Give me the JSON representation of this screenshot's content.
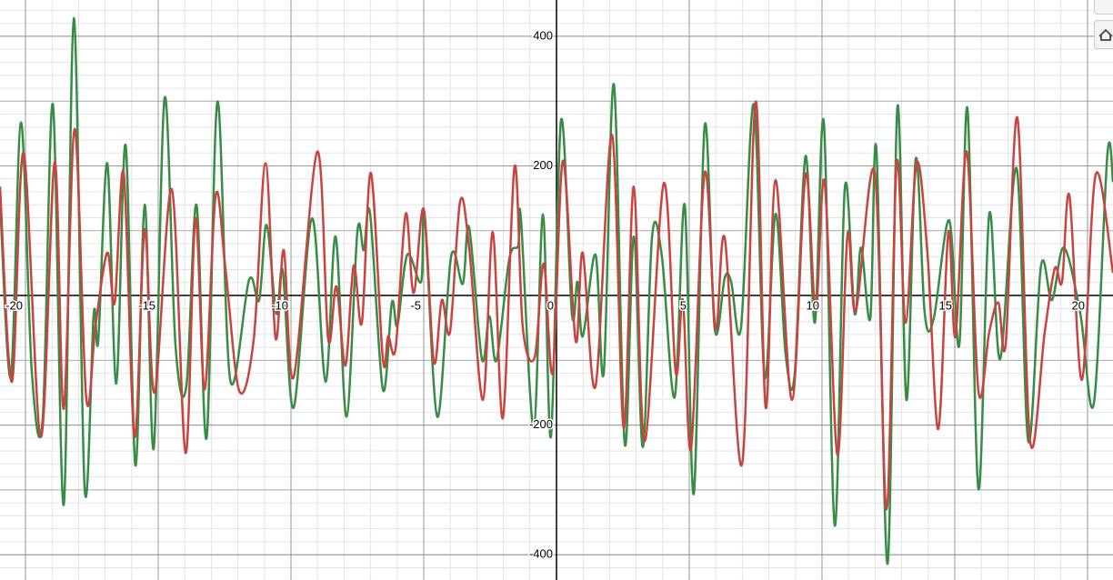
{
  "chart_data": {
    "type": "line",
    "xlim": [
      -20.96,
      20.96
    ],
    "ylim": [
      -439,
      456
    ],
    "xticks": [
      -20,
      -15,
      -10,
      -5,
      0,
      5,
      10,
      15,
      20
    ],
    "yticks": [
      -400,
      -200,
      200,
      400
    ],
    "grid": true,
    "minor_grid": true,
    "series": [
      {
        "color": "#388c46",
        "x": [
          -20.96,
          -20.55,
          -20.17,
          -19.76,
          -19.35,
          -18.97,
          -18.56,
          -18.18,
          -17.77,
          -17.43,
          -17.26,
          -16.92,
          -16.58,
          -16.23,
          -15.86,
          -15.51,
          -15.17,
          -14.76,
          -14.35,
          -13.94,
          -13.56,
          -13.18,
          -12.77,
          -12.29,
          -11.58,
          -11.2,
          -10.92,
          -10.55,
          -10.31,
          -9.9,
          -9.21,
          -8.7,
          -8.32,
          -7.91,
          -7.5,
          -7.26,
          -7.02,
          -6.54,
          -6.2,
          -5.99,
          -5.62,
          -5.1,
          -4.97,
          -4.49,
          -3.97,
          -3.53,
          -3.29,
          -2.81,
          -2.53,
          -2.26,
          -1.78,
          -1.44,
          -1.34,
          -0.86,
          -0.51,
          -0.21,
          0.17,
          0.58,
          0.79,
          0.99,
          1.47,
          1.78,
          2.16,
          2.57,
          2.91,
          3.25,
          3.6,
          3.97,
          4.45,
          4.83,
          5.17,
          5.58,
          5.96,
          6.34,
          6.58,
          6.95,
          7.43,
          7.84,
          8.25,
          8.63,
          8.97,
          9.38,
          9.73,
          10.07,
          10.48,
          10.86,
          11.23,
          11.47,
          11.82,
          12.05,
          12.47,
          12.84,
          13.18,
          13.53,
          13.87,
          14.21,
          14.79,
          15.17,
          15.48,
          15.89,
          16.3,
          16.71,
          17.33,
          17.77,
          18.25,
          18.66,
          19.11,
          19.73,
          20.24,
          20.75,
          20.96
        ],
        "values": [
          147,
          -126,
          267,
          -119,
          -189,
          295,
          -323,
          428,
          -299,
          -28,
          -70,
          204,
          -136,
          232,
          -262,
          140,
          -236,
          305,
          -77,
          -140,
          140,
          -220,
          299,
          -130,
          24,
          -7,
          109,
          -28,
          38,
          -173,
          119,
          -133,
          91,
          -187,
          98,
          70,
          126,
          -145,
          -11,
          -46,
          63,
          21,
          126,
          -187,
          60,
          18,
          105,
          -98,
          -32,
          -100,
          56,
          77,
          119,
          -204,
          125,
          -218,
          270,
          -28,
          21,
          -63,
          63,
          -119,
          326,
          -229,
          91,
          -234,
          91,
          60,
          -157,
          140,
          -306,
          262,
          -52,
          28,
          21,
          -49,
          295,
          -126,
          126,
          -91,
          -122,
          215,
          -42,
          267,
          -355,
          166,
          -28,
          74,
          -35,
          225,
          -414,
          291,
          -161,
          211,
          -28,
          -35,
          116,
          -77,
          288,
          -298,
          126,
          -98,
          196,
          -225,
          46,
          -7,
          74,
          -28,
          -166,
          218,
          175
        ]
      },
      {
        "color": "#c74440",
        "x": [
          -20.96,
          -20.51,
          -20.07,
          -19.42,
          -18.9,
          -18.56,
          -18.15,
          -17.71,
          -17.36,
          -16.92,
          -16.64,
          -16.3,
          -15.89,
          -15.51,
          -15.14,
          -14.49,
          -13.97,
          -13.6,
          -13.25,
          -12.84,
          -12.47,
          -11.95,
          -11.4,
          -10.96,
          -10.58,
          -10.27,
          -9.9,
          -9.01,
          -8.6,
          -8.29,
          -7.95,
          -7.64,
          -7.33,
          -6.99,
          -6.54,
          -6.34,
          -6.06,
          -5.68,
          -5.38,
          -5.0,
          -4.62,
          -4.32,
          -4.01,
          -3.63,
          -3.29,
          -2.77,
          -2.4,
          -2.02,
          -1.58,
          -1.27,
          -0.82,
          -0.48,
          -0.14,
          0.24,
          0.72,
          0.99,
          1.47,
          2.09,
          2.53,
          2.91,
          3.32,
          4.04,
          4.49,
          4.76,
          5.07,
          5.58,
          5.99,
          6.34,
          6.99,
          7.5,
          7.88,
          8.25,
          8.87,
          9.38,
          9.76,
          10.1,
          10.58,
          10.96,
          11.27,
          11.99,
          12.43,
          12.81,
          13.15,
          13.56,
          13.97,
          14.38,
          14.76,
          15.03,
          15.45,
          15.89,
          16.3,
          16.64,
          16.92,
          17.36,
          17.84,
          18.39,
          18.77,
          19.04,
          19.32,
          19.79,
          20.31,
          20.96
        ],
        "values": [
          168,
          -133,
          220,
          -218,
          206,
          -175,
          257,
          -159,
          -46,
          66,
          -11,
          189,
          -218,
          102,
          -150,
          164,
          -243,
          119,
          -145,
          154,
          42,
          -147,
          -66,
          204,
          -66,
          70,
          -126,
          222,
          -67,
          14,
          -108,
          46,
          -42,
          189,
          -98,
          -63,
          -81,
          126,
          4,
          133,
          -102,
          -7,
          -56,
          145,
          74,
          -161,
          98,
          -189,
          199,
          -49,
          -95,
          49,
          -119,
          208,
          -70,
          66,
          -140,
          248,
          -204,
          168,
          -225,
          173,
          -119,
          -7,
          -236,
          189,
          -52,
          88,
          -260,
          299,
          -173,
          178,
          -161,
          187,
          -21,
          175,
          -246,
          94,
          -24,
          189,
          -330,
          204,
          -42,
          204,
          66,
          -206,
          98,
          -63,
          222,
          -147,
          -56,
          -11,
          -74,
          274,
          -225,
          -56,
          42,
          21,
          154,
          -130,
          187,
          35
        ]
      }
    ]
  }
}
